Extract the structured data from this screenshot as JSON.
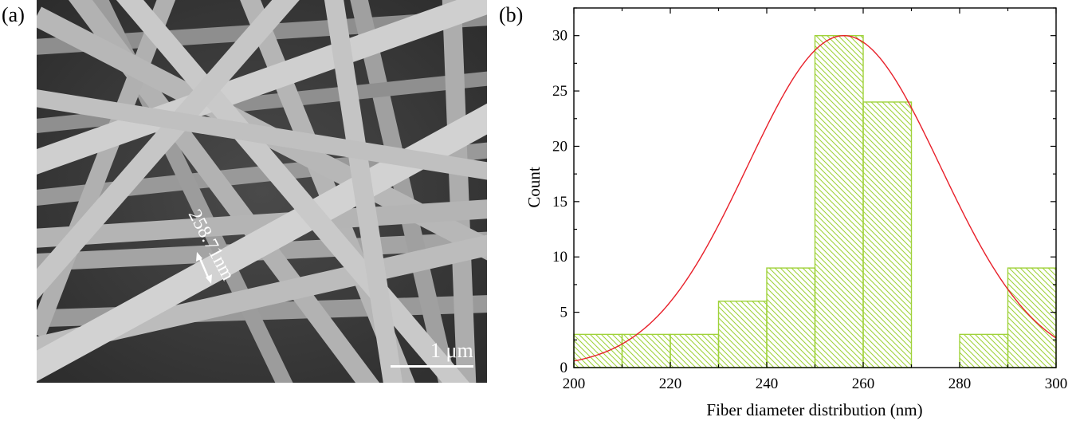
{
  "panels": {
    "a_label": "(a)",
    "b_label": "(b)"
  },
  "micrograph": {
    "measurement": "258.71nm",
    "scale_bar": "1 μm"
  },
  "chart_data": {
    "type": "bar",
    "title": "",
    "xlabel": "Fiber diameter distribution (nm)",
    "ylabel": "Count",
    "xlim": [
      200,
      300
    ],
    "ylim": [
      0,
      32.5
    ],
    "xticks": [
      200,
      220,
      240,
      260,
      280,
      300
    ],
    "yticks": [
      0,
      5,
      10,
      15,
      20,
      25,
      30
    ],
    "bins": [
      {
        "start": 200,
        "end": 210,
        "count": 3
      },
      {
        "start": 210,
        "end": 220,
        "count": 3
      },
      {
        "start": 220,
        "end": 230,
        "count": 3
      },
      {
        "start": 230,
        "end": 240,
        "count": 6
      },
      {
        "start": 240,
        "end": 250,
        "count": 9
      },
      {
        "start": 250,
        "end": 260,
        "count": 30
      },
      {
        "start": 260,
        "end": 270,
        "count": 24
      },
      {
        "start": 270,
        "end": 280,
        "count": 0
      },
      {
        "start": 280,
        "end": 290,
        "count": 3
      },
      {
        "start": 290,
        "end": 300,
        "count": 9
      }
    ],
    "fit": {
      "type": "gaussian",
      "mean": 256,
      "sigma": 20,
      "amplitude": 30
    },
    "colors": {
      "bar": "#9fd23a",
      "fit": "#e8202a",
      "axis": "#000000"
    }
  }
}
